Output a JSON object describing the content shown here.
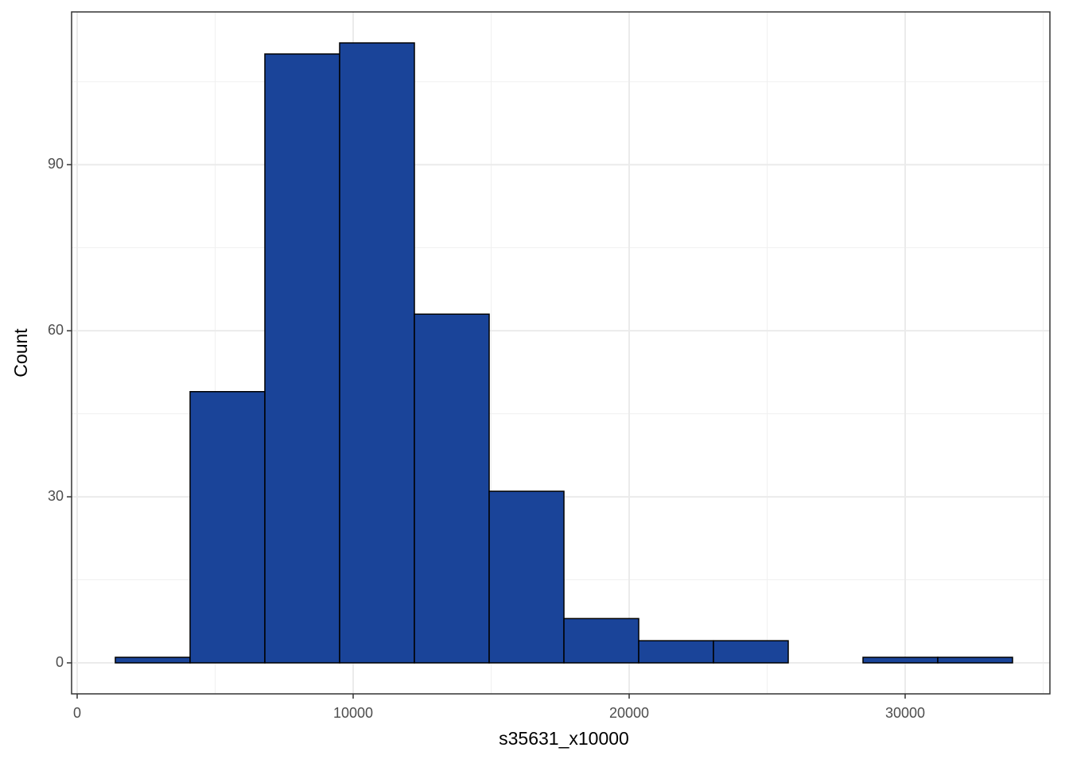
{
  "chart_data": {
    "type": "histogram",
    "x_label": "s35631_x10000",
    "y_label": "Count",
    "bins": [
      1383,
      4092,
      6801,
      9510,
      12219,
      14928,
      17637,
      20346,
      23055,
      25764,
      28473,
      31182,
      33891
    ],
    "counts": [
      1,
      49,
      110,
      112,
      63,
      31,
      8,
      4,
      4,
      0,
      1,
      1
    ],
    "color": "#1a4499",
    "edge_color": "#000000",
    "xlim": [
      -202,
      35245
    ],
    "ylim": [
      -5.6,
      117.6
    ],
    "xticks": [
      0,
      10000,
      20000,
      30000
    ],
    "yticks": [
      0,
      30,
      60,
      90
    ],
    "grid": true
  }
}
